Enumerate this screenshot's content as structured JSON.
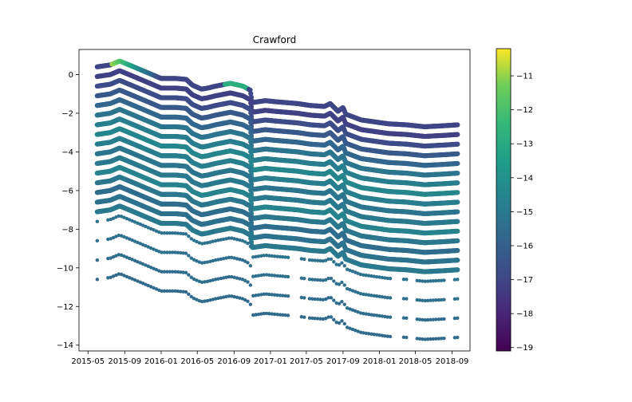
{
  "chart_data": {
    "type": "scatter",
    "title": "Crawford",
    "xlabel": "",
    "ylabel": "",
    "x_tick_labels": [
      "2015-05",
      "2015-09",
      "2016-01",
      "2016-05",
      "2016-09",
      "2017-01",
      "2017-05",
      "2017-09",
      "2018-01",
      "2018-05",
      "2018-09"
    ],
    "xlim": [
      "2015-04-01",
      "2018-10-31"
    ],
    "y_ticks": [
      0,
      -2,
      -4,
      -6,
      -8,
      -10,
      -12,
      -14
    ],
    "ylim": [
      -14.3,
      1.3
    ],
    "colorbar": {
      "colormap": "viridis",
      "range": [
        -19.1,
        -10.2
      ],
      "ticks": [
        -11,
        -12,
        -13,
        -14,
        -15,
        -16,
        -17,
        -18,
        -19
      ],
      "tick_labels": [
        "−11",
        "−12",
        "−13",
        "−14",
        "−15",
        "−16",
        "−17",
        "−18",
        "−19"
      ]
    },
    "colors": {
      "low": "#440154",
      "mid": "#21918c",
      "high": "#fde725"
    },
    "grid": false,
    "series": [
      {
        "offset": 0.4,
        "value": -17.0,
        "upper_value": -10.8,
        "upper_gradient": true
      },
      {
        "offset": -0.1,
        "value": -17.2
      },
      {
        "offset": -0.6,
        "value": -16.8
      },
      {
        "offset": -1.1,
        "value": -16.3
      },
      {
        "offset": -1.6,
        "value": -15.8
      },
      {
        "offset": -2.1,
        "value": -15.2
      },
      {
        "offset": -2.6,
        "value": -14.8
      },
      {
        "offset": -3.1,
        "value": -14.5
      },
      {
        "offset": -3.6,
        "value": -14.8
      },
      {
        "offset": -4.1,
        "value": -15.2
      },
      {
        "offset": -4.6,
        "value": -15.0
      },
      {
        "offset": -5.1,
        "value": -14.6
      },
      {
        "offset": -5.6,
        "value": -15.1
      },
      {
        "offset": -6.1,
        "value": -15.5
      },
      {
        "offset": -6.6,
        "value": -15.3
      },
      {
        "offset": -7.1,
        "value": -15.0
      },
      {
        "offset": -7.6,
        "value": -15.3,
        "sparse": true
      },
      {
        "offset": -8.6,
        "value": -15.4,
        "sparse": true
      },
      {
        "offset": -9.6,
        "value": -15.5,
        "sparse": true
      },
      {
        "offset": -10.6,
        "value": -15.6,
        "sparse": true
      }
    ],
    "trend_x": [
      "2015-06-01",
      "2015-07-15",
      "2015-08-15",
      "2015-10-01",
      "2016-01-01",
      "2016-02-20",
      "2016-03-25",
      "2016-04-15",
      "2016-05-15",
      "2016-06-05",
      "2016-07-01",
      "2016-08-20",
      "2016-10-01",
      "2016-10-25",
      "2016-11-01",
      "2016-12-15",
      "2017-01-15",
      "2017-04-01",
      "2017-05-15",
      "2017-07-01",
      "2017-07-20",
      "2017-08-15",
      "2017-09-01",
      "2017-09-10",
      "2017-11-01",
      "2018-02-01",
      "2018-04-01",
      "2018-06-01",
      "2018-08-01",
      "2018-09-20"
    ],
    "trend_y": [
      0,
      0.1,
      0.3,
      0.0,
      -0.6,
      -0.6,
      -0.65,
      -0.95,
      -1.15,
      -1.1,
      -1.0,
      -0.85,
      -1.0,
      -1.2,
      -1.85,
      -1.75,
      -1.8,
      -1.9,
      -2.0,
      -2.05,
      -1.9,
      -2.3,
      -2.1,
      -2.45,
      -2.75,
      -2.95,
      -3.0,
      -3.1,
      -3.05,
      -3.0
    ]
  }
}
